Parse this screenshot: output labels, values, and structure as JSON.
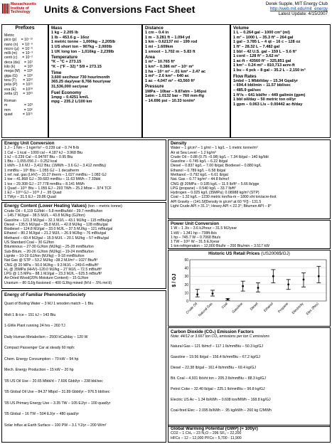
{
  "header": {
    "logo_lines": [
      "Massachusetts",
      "Institute of",
      "Technology"
    ],
    "title": "Units & Conversions Fact Sheet",
    "author": "Derek Supple, MIT Energy Club",
    "url": "http://web.mit.edu/mit_energy",
    "updated": "Latest Update: 4/15/2007"
  },
  "prefixes": {
    "title": "Prefixes",
    "metric_label": "Metric",
    "metric": [
      {
        "name": "pico (p)",
        "exp": "= 10⁻¹²"
      },
      {
        "name": "nano (n)",
        "exp": "= 10⁻⁹"
      },
      {
        "name": "micro (μ)",
        "exp": "= 10⁻⁶"
      },
      {
        "name": "milli (m)",
        "exp": "= 10⁻³"
      },
      {
        "name": "centi (c)",
        "exp": "= 10⁻²"
      },
      {
        "name": "deca (da)",
        "exp": "= 10¹"
      },
      {
        "name": "kilo (k)",
        "exp": "= 10³"
      },
      {
        "name": "mega (M)",
        "exp": "= 10⁶"
      },
      {
        "name": "giga (G)",
        "exp": "= 10⁹"
      },
      {
        "name": "tera (T)",
        "exp": "= 10¹²"
      },
      {
        "name": "peta (P)",
        "exp": "= 10¹⁵"
      },
      {
        "name": "exa (E)",
        "exp": "= 10¹⁸"
      },
      {
        "name": "zetta (Z)",
        "exp": "= 10²¹"
      }
    ],
    "roman_label": "Roman",
    "roman": [
      {
        "name": "m",
        "exp": "= 10³"
      },
      {
        "name": "mm",
        "exp": "= 10⁶"
      },
      {
        "name": "quad",
        "exp": "= 10¹⁵"
      }
    ]
  },
  "mass": {
    "title": "Mass",
    "lines": [
      "1 kg – 2.205 lb",
      "1 lb – 453.6 g – 16oz",
      "1 metric tonne – 1,000kg – 2,205lb",
      "1 US short ton – 907kg – 2,000lb",
      "1 UK long ton – 1,016kg – 2,239lb"
    ]
  },
  "temperature": {
    "title": "Temperature",
    "lines": [
      "°K – °C + 273.15",
      "°K – (°F – 32) * 5/9 + 273.15"
    ]
  },
  "time": {
    "title": "Time",
    "lines": [
      "3,600 sec/hour   730 hour/month",
      "365.25 day/year   8,766 hour/year",
      "31,536,000 sec/year"
    ]
  },
  "fuel_economy": {
    "title": "Fuel Economy",
    "lines": [
      "1mpg – 0.4251 km/L",
      "mpg – 235.2 L/100 km"
    ]
  },
  "distance": {
    "title": "Distance",
    "lines": [
      "1 cm – 0.4 in",
      "1 m – 3.281 ft – 1.094 yd",
      "1 km – 0.62137 mi – 199 rod",
      "1 mi – 1.609km",
      "1 smoot – 1.702 m – 5.83 ft"
    ]
  },
  "area": {
    "title": "Area",
    "lines": [
      "1 m² – 10.765 ft²",
      "1 km² – 0.386 mi² – 10⁶ m²",
      "1 ha – 10⁴ m² – .01 km² – 2.47 ac",
      "1 mi² – 2.6 km² – 640 ac",
      "1 ac – 4,047 m² – 43,560 ft²"
    ]
  },
  "pressure": {
    "title": "Pressure",
    "lines": [
      "1MPa – 10bar – 9.87atm – 145psi",
      "1atm – 1.0132 bar – 760 mm-Hg",
      "– 14.696 psi – 10.33 ton/m²"
    ]
  },
  "volume": {
    "title": "Volume",
    "lines": [
      "1 L – 0.264 gal – 1000 cm³ (ml)",
      "1 m³ – 1000 L – 35.3 ft³ – 264 gal",
      "1 gal – 3.785 L – 4 qt – 16 c – 128 oz",
      "1 ft³ – 28.32 L – 7.482 gal",
      "1 bbl – 42 U.S. gal – 159 L – 5.6 ft³",
      "1 cord – 128 ft³ – 3.62 m³",
      "1 ac-ft – 43560 ft³ – 325,851 gal",
      "1 km³ – 0.24 mi³ – 810,713 acre-ft",
      "1 bu – 4 pck – 8 gal – 35.2 L – 2,150 in³"
    ]
  },
  "flow_rates": {
    "title": "Flow Rates",
    "lines": [
      "1mbd – 1 Mbbl/day – 15.34 Gqal/yr",
      "– 694.4 bbl/min – 11.57 bbl/sec",
      "– 485.9 gal/sec",
      "1 ft³/s – 641 bbl/hr – 449 gal/min (gpm)",
      "1 bbl oil/day – 50 metric ton oil/yr",
      "1 gpm – 0.063 L/s – 0.00442 ac-ft/day"
    ]
  },
  "energy_unit": {
    "title": "Energy Unit Conversion",
    "lines": [
      "1 J – 1 Nm – 1 kgm²/s² – 0.239 cal – 0.74 ft-lb",
      "1 Cal – 1 kcal – 1000 cal – 4.187 kJ – 3.968 Btu",
      "1 kJ – 0.239 Cal – 0.94787 Btu – 0.95 Btu",
      "1 Btu – 1,055.056 J – 0.252 kcal",
      "1 kWh – 3.6 MJ – 3,412 Btu;  (1MWh – 3.6 GJ – 3.412 mmBtu)",
      "1 mmBtu – 10⁶ Btu – 1.055 GJ – 1 decatherm",
      "1 ref. nat. gas (LHV) – 10.27 therm – 1.027 mmBtu – 1.082 GJ",
      "1 toe – 41.868 GJ – 39.683 mmBtu – 11.63 MWh – 7.33bbl",
      "1 tce – 29.308 GJ – 27.778 mmBtu – 8.141 MWh",
      "1 Quad – 10¹⁵ Btu – 1.055 EJ – 293 TWh – 25.2 Mtoe – .974 TCF",
      "1 EJ – 10¹⁸ GJ – 10¹⁸ J – .95 Quad",
      "1 TWyr – 31.5 EJ – 29.86 Quad"
    ]
  },
  "energy_content": {
    "title": "Energy Content (Lower Heating Values)",
    "subtitle": "(ton – metric tonne)",
    "lines": [
      "Crude Oil – 6,119 GJ/bbl – 5.8 mmBtu/bbl – 39.7 mmBtu/ton",
      "– 145.7 MJ/gal – 38.5 MJ/L – 43.8 MJ/kg (GJ/ton)",
      "Gasoline – 121.3 MJ/gal – 32.1 MJ/L – 43.1 MJ/kg – 115 mBtu/gal",
      "Diesel – 135.5 MJ/gal – 35.8 MJ/L – 42.8 MJ/kg – 128 mBtu/gal",
      "Biodiesel – 124.8 MJ/gal – 33.0 MJ/L – 37.5 MJ/kg – 121 mBtu/gal",
      "Ethanol – 80.2 MJ/gal – 21.2 MJ/L – 26.9 MJ/kg – 76 mBtu/gal",
      "Methanol – 60.4 MJ/gal – 15.9 MJ/L – 20.1 MJ/kg – 57 mBtu/gal",
      "US Standard Coal – 30 GJ/ton",
      "Bituminous – 27-30 GJ/ton (MJ/kg) – 25-28 mmBtu/ton",
      "Sub-Bitum. – 20-26 GJ/ton (MJ/kg) – 19-24 mmBtu/ton",
      "Lignite – 10-19 GJ/ton (MJ/kg) – 9-18 mmBtu/ton",
      "Nat Gas @ STP – 53.2 MJ/kg –38.2 MJ/m³ – 1027 Btu/ft³",
      "CNG @ 20 MPa – 50.0 MJ/kg – 9.3 MJ/L – 249.6 mBtu/ft³",
      "H₂ @ 35MPa (HHV)–120.0 MJ/kg – 27 MJ/L – 72.5 mBtu/ft³",
      "LPG @ 1.5 MPa – 88.1 MJ/gal – 23.3 MJ/L – 625.5 mBtu/ft³",
      "Air-Dried Wood(20% Moisture Content) – 15 GJ/ton",
      "Uranium – 80 GJ/g fissioned – 400 GJ/kg mined (frt'd – .5% mn'd)"
    ]
  },
  "energy_familiar": {
    "title": "Energy of Familiar Phenomena/Society",
    "lines": [
      "Quart of Boiling Water – 3 MJ     1 wooden match – 1 Btu",
      "Melt 1 lb ice – 151 kJ – 143 Btu",
      "1-GWe Plant running 24 hrs – 260 TJ",
      "Daily Human Metabolism – 2500 kCal/day – 120 W",
      "Compact Passenger Car at steady 60 mph:",
      "Chem. Energy Consumption – 70 kW – 94 hp",
      "Mech. Energy Production – 15 kW – 20 hp",
      "'05 US Oil Use – 20.65 Mbbl/d – 7.606 Gbbl/yr – 238 bbl/sec",
      "'05 Global Oil Use – 84.37 Mbpd – 31.89 Gbbl/yr – 976.5 bbl/sec",
      "'05 US Primary Energy Use – 3.35 TW – 105 EJ/yr – 100 quad/yr",
      "'05 Global – 16 TW – 504 EJ/yr – 480 quad/yr",
      "Solar Influx at Earth Surface – 100 PW – 3.1 YJ/yr – 200 W/m²"
    ]
  },
  "density": {
    "title": "Density",
    "lines": [
      "Water – 1 g/cm³ – 1 g/ml – 1 kg/L – 1 metric tonne/m³",
      "Air at Sea Level – 1.2 kg/m³",
      "Crude Oil – 0.88 (0.75 –0.98) kg/L – 7.34 lb/gal – 140 kg/bbl",
      "Gasoline – 0.745 kg/L – 6.22 lb/gal",
      "Diesel – 0.837 kg/L – 7.00 lb/gal; Biodiesel – 0.880 kg/L",
      "Ethanol – 0.789 kg/L – 6.58 lb/gal",
      "Methanol – 0.792 kg/L – 6.61 lb/gal",
      "Nat. Gas – 0.77 kg/m³ – 44.8 lb/mcf",
      "CNG @ 20MPa – 0.185 kg/L – 11.5 lb/ft³ – 5.66 lb/gge",
      "LPG (propane) – 0.540 kg/L – 33.7 lb/ft³",
      "Hydrogen – 0.025 kg/L (35MPa); 0.08988 kg/m³ (STP)",
      "Coal – 1.32 kg/L – 1230 metric ton/ha-m – 1800 sht ton/acre-foot",
      "API Gravity – (141.5/[Density in g/cm³ at 60 °F]) - 131.5",
      "Light Crude API > 31.1°; Heavy API < 22.3°; Bitumen API – 8°"
    ]
  },
  "power_unit": {
    "title": "Power Unit Conversion",
    "lines": [
      "1 W – 1 J/s – 3.6 kJ/hour – 31.5 MJ/year",
      "1 kW – 1.341 hp – 738ft-lb/s",
      "1 hp – 745.7 W – 0.7068 Btu/s",
      "1 TW – 10¹² W – 31.5 EJ/year",
      "1 ton-refrigeration – 12,000 Btu/hr – 200 Btu/min – 3.517 kW"
    ]
  },
  "chart_data": {
    "type": "bar",
    "title": "Historic US Retail Prices",
    "subtitle": "(US2006$/GJ)",
    "ylabel": "$ / GJ",
    "ylim": [
      0,
      50
    ],
    "yticks": [
      0,
      10,
      20,
      30,
      40,
      50
    ],
    "categories": [
      "Crude Oil",
      "Natural Gas",
      "Coal",
      "Gasoline",
      "Diesel",
      "Ethanol",
      "Propane",
      "Electricity",
      "Elec (Res)"
    ],
    "values": [
      8,
      9,
      2,
      18,
      16,
      30,
      20,
      26,
      30
    ],
    "ranges": [
      [
        5,
        14
      ],
      [
        6,
        13
      ],
      [
        1,
        3
      ],
      [
        12,
        24
      ],
      [
        11,
        22
      ],
      [
        22,
        38
      ],
      [
        14,
        26
      ],
      [
        17,
        34
      ],
      [
        22,
        42
      ]
    ]
  },
  "co2": {
    "title": "Carbon Dioxide (CO₂) Emission Factors",
    "note": "Note: 44/12 or 3.667 ton CO₂ emissions per ton C emissions",
    "lines": [
      "Natural Gas – 121 lb/mcf – 117.1 lb/mmBtu – 50.3 kg/GJ",
      "Gasoline – 19.56 lb/gal – 156.4 lb/mmBtu – 67.2 kg/GJ",
      "Diesel – 22.38 lb/gal – 161.4 lb/mmBtu – 69.4 kg/GJ",
      "Bit. Coal – 4,931 lb/sht ton – 205.3 lb/mmBtu – 88.3 kg/GJ",
      "Petrol Coke – 32.40 lb/gal – 225.1 lb/mmBtu – 96.8 kg/GJ",
      "Electric US Av – 1.34 lb/kWh – 0.608 ton/MWh – 168.8 kg/GJ",
      "Coal-fired Elec – 2.095 lb/kWh – .95 kg/kWh – 260 kg C/MWh"
    ]
  },
  "gwp": {
    "title": "Global Warming Potential (GWP) (≈ 100yr)",
    "lines": [
      "CO2 – 1     CH₄ – 23     N₂O – 296     SF₆ – 22,200",
      "HFCs – 12 – 12,000     PFCs – 5,700 - 11,900"
    ]
  }
}
